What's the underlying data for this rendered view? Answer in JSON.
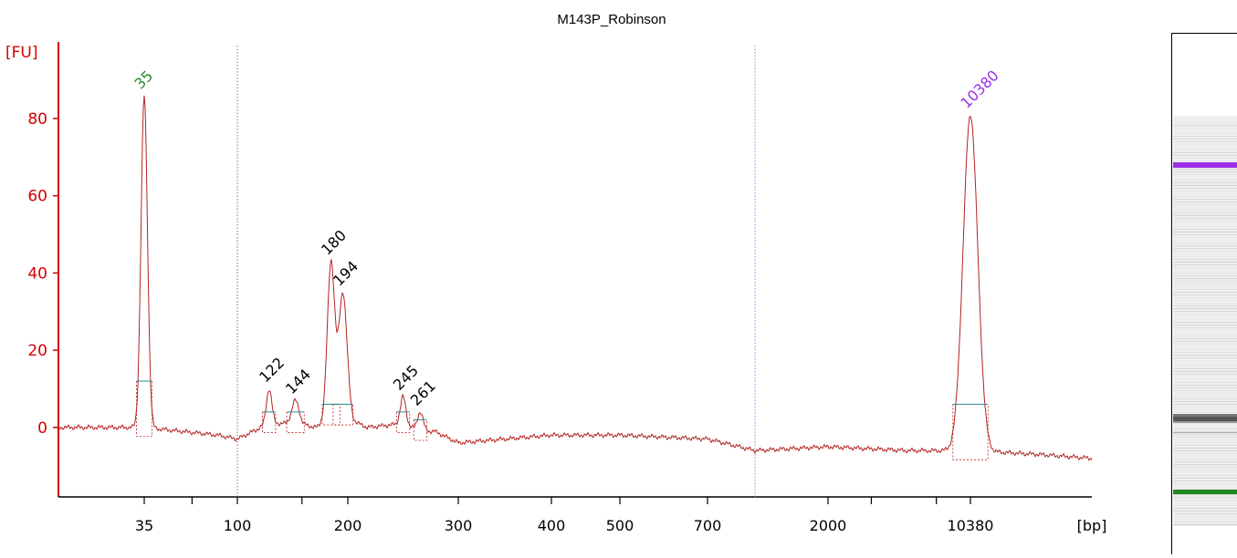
{
  "chart_data": {
    "type": "line",
    "title": "M143P_Robinson",
    "y_axis_label": "[FU]",
    "x_axis_label": "[bp]",
    "y_ticks": [
      0,
      20,
      40,
      60,
      80
    ],
    "ylim": [
      -18,
      97
    ],
    "x_tick_labels": [
      "35",
      "100",
      "200",
      "300",
      "400",
      "500",
      "700",
      "2000",
      "10380"
    ],
    "x_scale": "nonlinear (time axis, bp labels)",
    "grid": false,
    "colors": {
      "trace": "#b22222",
      "axis": "#d40000",
      "lower_marker": "#2a8a2a",
      "upper_marker": "#9b30e8",
      "baseline": "#2a8a8a",
      "text": "#000000"
    },
    "peaks": [
      {
        "label": "35",
        "size_bp": 35,
        "height": 86,
        "role": "lower marker"
      },
      {
        "label": "122",
        "size_bp": 122,
        "height": 10
      },
      {
        "label": "144",
        "size_bp": 144,
        "height": 7
      },
      {
        "label": "180",
        "size_bp": 180,
        "height": 43
      },
      {
        "label": "194",
        "size_bp": 194,
        "height": 35
      },
      {
        "label": "245",
        "size_bp": 245,
        "height": 8
      },
      {
        "label": "261",
        "size_bp": 261,
        "height": 4
      },
      {
        "label": "10380",
        "size_bp": 10380,
        "height": 81,
        "role": "upper marker"
      }
    ],
    "series": [
      {
        "x_bp": [
          20,
          35,
          80,
          100,
          122,
          144,
          165,
          180,
          194,
          215,
          245,
          261,
          275,
          300,
          400,
          500,
          700,
          1000,
          2000,
          5000,
          10380,
          15000,
          20000
        ],
        "y": [
          0,
          0,
          -2,
          -3,
          1,
          1,
          0,
          3,
          3,
          0,
          1,
          -1,
          -1,
          -4,
          -2,
          -2,
          -3,
          -6,
          -5,
          -6,
          -6,
          -7,
          -8
        ]
      }
    ]
  },
  "gel": {
    "bands": [
      {
        "size_bp": 10380,
        "color": "#9b30e8"
      },
      {
        "size_bp": 194,
        "color": "#777777"
      },
      {
        "size_bp": 180,
        "color": "#555555"
      },
      {
        "size_bp": 35,
        "color": "#1f8a1f"
      }
    ]
  }
}
